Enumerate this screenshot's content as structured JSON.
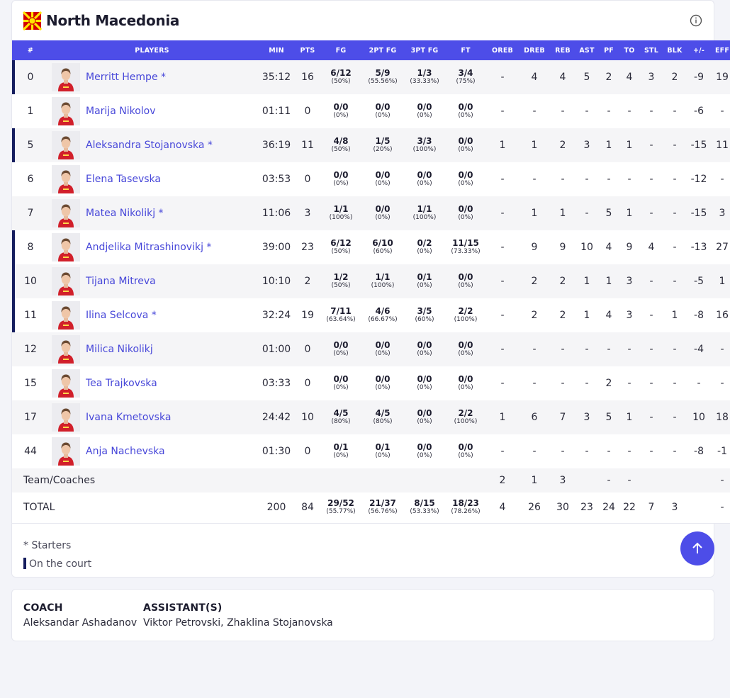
{
  "team": {
    "name": "North Macedonia"
  },
  "columns": [
    "#",
    "PLAYERS",
    "MIN",
    "PTS",
    "FG",
    "2PT FG",
    "3PT FG",
    "FT",
    "OREB",
    "DREB",
    "REB",
    "AST",
    "PF",
    "TO",
    "STL",
    "BLK",
    "+/-",
    "EFF"
  ],
  "players": [
    {
      "num": "0",
      "name": "Merritt Hempe *",
      "min": "35:12",
      "pts": "16",
      "fg": "6/12",
      "fg_pct": "(50%)",
      "p2": "5/9",
      "p2_pct": "(55.56%)",
      "p3": "1/3",
      "p3_pct": "(33.33%)",
      "ft": "3/4",
      "ft_pct": "(75%)",
      "oreb": "-",
      "dreb": "4",
      "reb": "4",
      "ast": "5",
      "pf": "2",
      "to": "4",
      "stl": "3",
      "blk": "2",
      "pm": "-9",
      "eff": "19",
      "on_court": true
    },
    {
      "num": "1",
      "name": "Marija Nikolov",
      "min": "01:11",
      "pts": "0",
      "fg": "0/0",
      "fg_pct": "(0%)",
      "p2": "0/0",
      "p2_pct": "(0%)",
      "p3": "0/0",
      "p3_pct": "(0%)",
      "ft": "0/0",
      "ft_pct": "(0%)",
      "oreb": "-",
      "dreb": "-",
      "reb": "-",
      "ast": "-",
      "pf": "-",
      "to": "-",
      "stl": "-",
      "blk": "-",
      "pm": "-6",
      "eff": "-",
      "on_court": false
    },
    {
      "num": "5",
      "name": "Aleksandra Stojanovska *",
      "min": "36:19",
      "pts": "11",
      "fg": "4/8",
      "fg_pct": "(50%)",
      "p2": "1/5",
      "p2_pct": "(20%)",
      "p3": "3/3",
      "p3_pct": "(100%)",
      "ft": "0/0",
      "ft_pct": "(0%)",
      "oreb": "1",
      "dreb": "1",
      "reb": "2",
      "ast": "3",
      "pf": "1",
      "to": "1",
      "stl": "-",
      "blk": "-",
      "pm": "-15",
      "eff": "11",
      "on_court": true
    },
    {
      "num": "6",
      "name": "Elena Tasevska",
      "min": "03:53",
      "pts": "0",
      "fg": "0/0",
      "fg_pct": "(0%)",
      "p2": "0/0",
      "p2_pct": "(0%)",
      "p3": "0/0",
      "p3_pct": "(0%)",
      "ft": "0/0",
      "ft_pct": "(0%)",
      "oreb": "-",
      "dreb": "-",
      "reb": "-",
      "ast": "-",
      "pf": "-",
      "to": "-",
      "stl": "-",
      "blk": "-",
      "pm": "-12",
      "eff": "-",
      "on_court": false
    },
    {
      "num": "7",
      "name": "Matea Nikolikj *",
      "min": "11:06",
      "pts": "3",
      "fg": "1/1",
      "fg_pct": "(100%)",
      "p2": "0/0",
      "p2_pct": "(0%)",
      "p3": "1/1",
      "p3_pct": "(100%)",
      "ft": "0/0",
      "ft_pct": "(0%)",
      "oreb": "-",
      "dreb": "1",
      "reb": "1",
      "ast": "-",
      "pf": "5",
      "to": "1",
      "stl": "-",
      "blk": "-",
      "pm": "-15",
      "eff": "3",
      "on_court": false
    },
    {
      "num": "8",
      "name": "Andjelika Mitrashinovikj *",
      "min": "39:00",
      "pts": "23",
      "fg": "6/12",
      "fg_pct": "(50%)",
      "p2": "6/10",
      "p2_pct": "(60%)",
      "p3": "0/2",
      "p3_pct": "(0%)",
      "ft": "11/15",
      "ft_pct": "(73.33%)",
      "oreb": "-",
      "dreb": "9",
      "reb": "9",
      "ast": "10",
      "pf": "4",
      "to": "9",
      "stl": "4",
      "blk": "-",
      "pm": "-13",
      "eff": "27",
      "on_court": true
    },
    {
      "num": "10",
      "name": "Tijana Mitreva",
      "min": "10:10",
      "pts": "2",
      "fg": "1/2",
      "fg_pct": "(50%)",
      "p2": "1/1",
      "p2_pct": "(100%)",
      "p3": "0/1",
      "p3_pct": "(0%)",
      "ft": "0/0",
      "ft_pct": "(0%)",
      "oreb": "-",
      "dreb": "2",
      "reb": "2",
      "ast": "1",
      "pf": "1",
      "to": "3",
      "stl": "-",
      "blk": "-",
      "pm": "-5",
      "eff": "1",
      "on_court": true
    },
    {
      "num": "11",
      "name": "Ilina Selcova *",
      "min": "32:24",
      "pts": "19",
      "fg": "7/11",
      "fg_pct": "(63.64%)",
      "p2": "4/6",
      "p2_pct": "(66.67%)",
      "p3": "3/5",
      "p3_pct": "(60%)",
      "ft": "2/2",
      "ft_pct": "(100%)",
      "oreb": "-",
      "dreb": "2",
      "reb": "2",
      "ast": "1",
      "pf": "4",
      "to": "3",
      "stl": "-",
      "blk": "1",
      "pm": "-8",
      "eff": "16",
      "on_court": true
    },
    {
      "num": "12",
      "name": "Milica Nikolikj",
      "min": "01:00",
      "pts": "0",
      "fg": "0/0",
      "fg_pct": "(0%)",
      "p2": "0/0",
      "p2_pct": "(0%)",
      "p3": "0/0",
      "p3_pct": "(0%)",
      "ft": "0/0",
      "ft_pct": "(0%)",
      "oreb": "-",
      "dreb": "-",
      "reb": "-",
      "ast": "-",
      "pf": "-",
      "to": "-",
      "stl": "-",
      "blk": "-",
      "pm": "-4",
      "eff": "-",
      "on_court": false
    },
    {
      "num": "15",
      "name": "Tea Trajkovska",
      "min": "03:33",
      "pts": "0",
      "fg": "0/0",
      "fg_pct": "(0%)",
      "p2": "0/0",
      "p2_pct": "(0%)",
      "p3": "0/0",
      "p3_pct": "(0%)",
      "ft": "0/0",
      "ft_pct": "(0%)",
      "oreb": "-",
      "dreb": "-",
      "reb": "-",
      "ast": "-",
      "pf": "2",
      "to": "-",
      "stl": "-",
      "blk": "-",
      "pm": "-",
      "eff": "-",
      "on_court": false
    },
    {
      "num": "17",
      "name": "Ivana Kmetovska",
      "min": "24:42",
      "pts": "10",
      "fg": "4/5",
      "fg_pct": "(80%)",
      "p2": "4/5",
      "p2_pct": "(80%)",
      "p3": "0/0",
      "p3_pct": "(0%)",
      "ft": "2/2",
      "ft_pct": "(100%)",
      "oreb": "1",
      "dreb": "6",
      "reb": "7",
      "ast": "3",
      "pf": "5",
      "to": "1",
      "stl": "-",
      "blk": "-",
      "pm": "10",
      "eff": "18",
      "on_court": false
    },
    {
      "num": "44",
      "name": "Anja Nachevska",
      "min": "01:30",
      "pts": "0",
      "fg": "0/1",
      "fg_pct": "(0%)",
      "p2": "0/1",
      "p2_pct": "(0%)",
      "p3": "0/0",
      "p3_pct": "(0%)",
      "ft": "0/0",
      "ft_pct": "(0%)",
      "oreb": "-",
      "dreb": "-",
      "reb": "-",
      "ast": "-",
      "pf": "-",
      "to": "-",
      "stl": "-",
      "blk": "-",
      "pm": "-8",
      "eff": "-1",
      "on_court": false
    }
  ],
  "team_row": {
    "label": "Team/Coaches",
    "oreb": "2",
    "dreb": "1",
    "reb": "3",
    "pf": "-",
    "to": "-",
    "eff": "-"
  },
  "total_row": {
    "label": "TOTAL",
    "min": "200",
    "pts": "84",
    "fg": "29/52",
    "fg_pct": "(55.77%)",
    "p2": "21/37",
    "p2_pct": "(56.76%)",
    "p3": "8/15",
    "p3_pct": "(53.33%)",
    "ft": "18/23",
    "ft_pct": "(78.26%)",
    "oreb": "4",
    "dreb": "26",
    "reb": "30",
    "ast": "23",
    "pf": "24",
    "to": "22",
    "stl": "7",
    "blk": "3",
    "eff": "-"
  },
  "legend": {
    "starters": "* Starters",
    "on_court": "On the court"
  },
  "coach": {
    "title": "COACH",
    "name": "Aleksandar Ashadanov",
    "assistants_title": "ASSISTANT(S)",
    "assistants": "Viktor Petrovski, Zhaklina Stojanovska"
  },
  "icons": {
    "info": "info-icon",
    "scroll_top": "arrow-up-icon",
    "flag": "north-macedonia-flag-icon"
  },
  "colors": {
    "header_bg": "#4d4de8",
    "player_link": "#4747d9",
    "on_court_bar": "#151d5e",
    "flag_red": "#d20000",
    "flag_yellow": "#ffe600"
  }
}
